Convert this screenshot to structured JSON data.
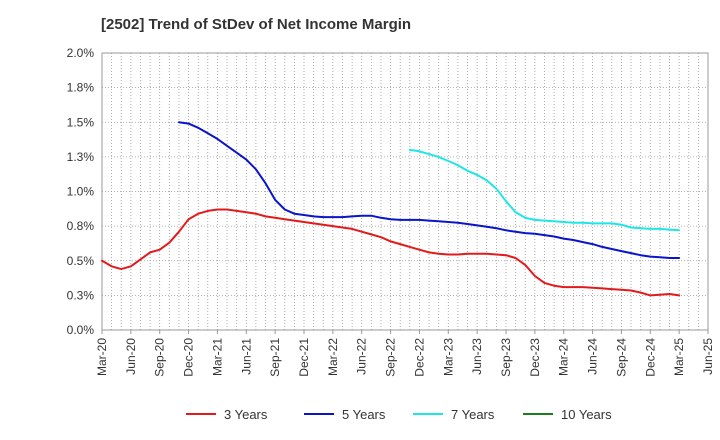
{
  "chart_data": {
    "type": "line",
    "title": "[2502]  Trend of StDev of Net Income Margin",
    "xlabel": "",
    "ylabel": "",
    "ylim": [
      0,
      2.0
    ],
    "y_ticks": [
      "0.0%",
      "0.3%",
      "0.5%",
      "0.8%",
      "1.0%",
      "1.3%",
      "1.5%",
      "1.8%",
      "2.0%"
    ],
    "x_ticks": [
      "Mar-20",
      "Jun-20",
      "Sep-20",
      "Dec-20",
      "Mar-21",
      "Jun-21",
      "Sep-21",
      "Dec-21",
      "Mar-22",
      "Jun-22",
      "Sep-22",
      "Dec-22",
      "Mar-23",
      "Jun-23",
      "Sep-23",
      "Dec-23",
      "Mar-24",
      "Jun-24",
      "Sep-24",
      "Dec-24",
      "Mar-25",
      "Jun-25"
    ],
    "grid": true,
    "legend_position": "bottom",
    "series": [
      {
        "name": "3 Years",
        "color": "#e31a1c",
        "points": [
          [
            "Mar-20",
            0.5
          ],
          [
            "Apr-20",
            0.46
          ],
          [
            "May-20",
            0.44
          ],
          [
            "Jun-20",
            0.46
          ],
          [
            "Jul-20",
            0.51
          ],
          [
            "Aug-20",
            0.56
          ],
          [
            "Sep-20",
            0.58
          ],
          [
            "Oct-20",
            0.63
          ],
          [
            "Nov-20",
            0.71
          ],
          [
            "Dec-20",
            0.8
          ],
          [
            "Jan-21",
            0.84
          ],
          [
            "Feb-21",
            0.86
          ],
          [
            "Mar-21",
            0.87
          ],
          [
            "Apr-21",
            0.87
          ],
          [
            "May-21",
            0.86
          ],
          [
            "Jun-21",
            0.85
          ],
          [
            "Jul-21",
            0.84
          ],
          [
            "Aug-21",
            0.82
          ],
          [
            "Sep-21",
            0.81
          ],
          [
            "Oct-21",
            0.8
          ],
          [
            "Nov-21",
            0.79
          ],
          [
            "Dec-21",
            0.78
          ],
          [
            "Jan-22",
            0.77
          ],
          [
            "Feb-22",
            0.76
          ],
          [
            "Mar-22",
            0.75
          ],
          [
            "Apr-22",
            0.74
          ],
          [
            "May-22",
            0.73
          ],
          [
            "Jun-22",
            0.71
          ],
          [
            "Jul-22",
            0.69
          ],
          [
            "Aug-22",
            0.67
          ],
          [
            "Sep-22",
            0.64
          ],
          [
            "Oct-22",
            0.62
          ],
          [
            "Nov-22",
            0.6
          ],
          [
            "Dec-22",
            0.58
          ],
          [
            "Jan-23",
            0.56
          ],
          [
            "Feb-23",
            0.55
          ],
          [
            "Mar-23",
            0.545
          ],
          [
            "Apr-23",
            0.545
          ],
          [
            "May-23",
            0.55
          ],
          [
            "Jun-23",
            0.55
          ],
          [
            "Jul-23",
            0.55
          ],
          [
            "Aug-23",
            0.545
          ],
          [
            "Sep-23",
            0.54
          ],
          [
            "Oct-23",
            0.52
          ],
          [
            "Nov-23",
            0.47
          ],
          [
            "Dec-23",
            0.39
          ],
          [
            "Jan-24",
            0.34
          ],
          [
            "Feb-24",
            0.32
          ],
          [
            "Mar-24",
            0.31
          ],
          [
            "Apr-24",
            0.31
          ],
          [
            "May-24",
            0.31
          ],
          [
            "Jun-24",
            0.305
          ],
          [
            "Jul-24",
            0.3
          ],
          [
            "Aug-24",
            0.295
          ],
          [
            "Sep-24",
            0.29
          ],
          [
            "Oct-24",
            0.285
          ],
          [
            "Nov-24",
            0.27
          ],
          [
            "Dec-24",
            0.25
          ],
          [
            "Jan-25",
            0.255
          ],
          [
            "Feb-25",
            0.26
          ],
          [
            "Mar-25",
            0.25
          ]
        ]
      },
      {
        "name": "5 Years",
        "color": "#0a14c8",
        "points": [
          [
            "Nov-20",
            1.5
          ],
          [
            "Dec-20",
            1.49
          ],
          [
            "Jan-21",
            1.46
          ],
          [
            "Feb-21",
            1.42
          ],
          [
            "Mar-21",
            1.38
          ],
          [
            "Apr-21",
            1.33
          ],
          [
            "May-21",
            1.28
          ],
          [
            "Jun-21",
            1.23
          ],
          [
            "Jul-21",
            1.16
          ],
          [
            "Aug-21",
            1.06
          ],
          [
            "Sep-21",
            0.94
          ],
          [
            "Oct-21",
            0.87
          ],
          [
            "Nov-21",
            0.84
          ],
          [
            "Dec-21",
            0.83
          ],
          [
            "Jan-22",
            0.82
          ],
          [
            "Feb-22",
            0.815
          ],
          [
            "Mar-22",
            0.815
          ],
          [
            "Apr-22",
            0.815
          ],
          [
            "May-22",
            0.82
          ],
          [
            "Jun-22",
            0.825
          ],
          [
            "Jul-22",
            0.825
          ],
          [
            "Aug-22",
            0.81
          ],
          [
            "Sep-22",
            0.8
          ],
          [
            "Oct-22",
            0.795
          ],
          [
            "Nov-22",
            0.795
          ],
          [
            "Dec-22",
            0.795
          ],
          [
            "Jan-23",
            0.79
          ],
          [
            "Feb-23",
            0.785
          ],
          [
            "Mar-23",
            0.78
          ],
          [
            "Apr-23",
            0.775
          ],
          [
            "May-23",
            0.765
          ],
          [
            "Jun-23",
            0.755
          ],
          [
            "Jul-23",
            0.745
          ],
          [
            "Aug-23",
            0.735
          ],
          [
            "Sep-23",
            0.72
          ],
          [
            "Oct-23",
            0.71
          ],
          [
            "Nov-23",
            0.7
          ],
          [
            "Dec-23",
            0.695
          ],
          [
            "Jan-24",
            0.685
          ],
          [
            "Feb-24",
            0.675
          ],
          [
            "Mar-24",
            0.66
          ],
          [
            "Apr-24",
            0.65
          ],
          [
            "May-24",
            0.635
          ],
          [
            "Jun-24",
            0.62
          ],
          [
            "Jul-24",
            0.6
          ],
          [
            "Aug-24",
            0.585
          ],
          [
            "Sep-24",
            0.57
          ],
          [
            "Oct-24",
            0.555
          ],
          [
            "Nov-24",
            0.54
          ],
          [
            "Dec-24",
            0.53
          ],
          [
            "Jan-25",
            0.525
          ],
          [
            "Feb-25",
            0.52
          ],
          [
            "Mar-25",
            0.52
          ]
        ]
      },
      {
        "name": "7 Years",
        "color": "#1ee6e6",
        "points": [
          [
            "Nov-22",
            1.3
          ],
          [
            "Dec-22",
            1.29
          ],
          [
            "Jan-23",
            1.27
          ],
          [
            "Feb-23",
            1.25
          ],
          [
            "Mar-23",
            1.22
          ],
          [
            "Apr-23",
            1.19
          ],
          [
            "May-23",
            1.15
          ],
          [
            "Jun-23",
            1.12
          ],
          [
            "Jul-23",
            1.08
          ],
          [
            "Aug-23",
            1.02
          ],
          [
            "Sep-23",
            0.93
          ],
          [
            "Oct-23",
            0.85
          ],
          [
            "Nov-23",
            0.81
          ],
          [
            "Dec-23",
            0.795
          ],
          [
            "Jan-24",
            0.79
          ],
          [
            "Feb-24",
            0.785
          ],
          [
            "Mar-24",
            0.78
          ],
          [
            "Apr-24",
            0.775
          ],
          [
            "May-24",
            0.775
          ],
          [
            "Jun-24",
            0.77
          ],
          [
            "Jul-24",
            0.77
          ],
          [
            "Aug-24",
            0.77
          ],
          [
            "Sep-24",
            0.76
          ],
          [
            "Oct-24",
            0.74
          ],
          [
            "Nov-24",
            0.735
          ],
          [
            "Dec-24",
            0.73
          ],
          [
            "Jan-25",
            0.73
          ],
          [
            "Feb-25",
            0.725
          ],
          [
            "Mar-25",
            0.72
          ]
        ]
      },
      {
        "name": "10 Years",
        "color": "#1a7f1a",
        "points": []
      }
    ]
  }
}
